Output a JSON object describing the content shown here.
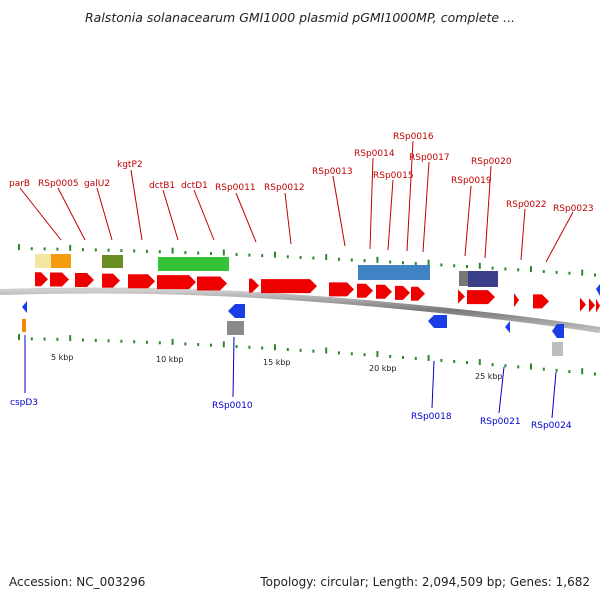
{
  "title": "Ralstonia solanacearum GMI1000 plasmid pGMI1000MP, complete ...",
  "footer": {
    "accession": "Accession: NC_003296",
    "summary": "Topology: circular; Length: 2,094,509 bp; Genes: 1,682"
  },
  "map": {
    "scale_labels": [
      "5 kbp",
      "10 kbp",
      "15 kbp",
      "20 kbp",
      "25 kbp"
    ],
    "upper_genes": [
      "parB",
      "RSp0005",
      "galU2",
      "kgtP2",
      "dctB1",
      "dctD1",
      "RSp0011",
      "RSp0012",
      "RSp0013",
      "RSp0014",
      "RSp0015",
      "RSp0016",
      "RSp0017",
      "RSp0019",
      "RSp0020",
      "RSp0022",
      "RSp0023"
    ],
    "lower_genes": [
      "cspD3",
      "RSp0010",
      "RSp0018",
      "RSp0021",
      "RSp0024"
    ],
    "colors": {
      "forward_gene": "#ee0000",
      "reverse_gene": "#1a3ee6",
      "forward_label": "#c00000",
      "reverse_label": "#0000cc",
      "backbone": "#888888",
      "ticks": "#2a8a2a"
    }
  }
}
